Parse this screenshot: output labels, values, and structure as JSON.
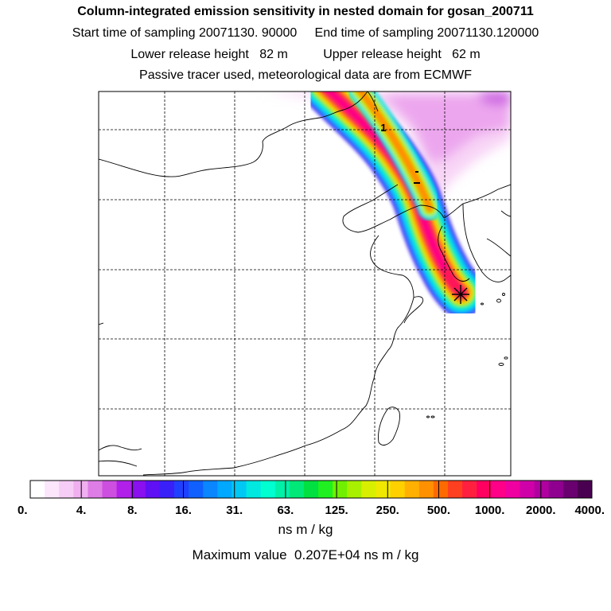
{
  "header": {
    "title": "Column-integrated emission sensitivity in nested domain for gosan_200711",
    "line1": "Start time of sampling 20071130. 90000     End time of sampling 20071130.120000",
    "line2": "Lower release height   82 m          Upper release height   62 m",
    "line3": "Passive tracer used, meteorological data are from ECMWF"
  },
  "chart_data": {
    "type": "heatmap",
    "title": "Column-integrated emission sensitivity in nested domain for gosan_200711",
    "units_label": "ns m / kg",
    "max_value_label": "Maximum value  0.207E+04 ns m / kg",
    "release_site_marker": "*",
    "plume_label": "1",
    "colorbar": {
      "tick_labels": [
        "0.",
        "4.",
        "8.",
        "16.",
        "31.",
        "63.",
        "125.",
        "250.",
        "500.",
        "1000.",
        "2000.",
        "4000."
      ],
      "colors": [
        "#ffffff",
        "#fbe6fb",
        "#f6cdf6",
        "#f0b0f0",
        "#de7de6",
        "#cc4fe0",
        "#b020e8",
        "#8a10f0",
        "#6010f4",
        "#3a20f8",
        "#2040ff",
        "#1060ff",
        "#0a86ff",
        "#00a8ff",
        "#00c8f4",
        "#00e8e0",
        "#00ffd0",
        "#00f0a8",
        "#00e878",
        "#00e040",
        "#20f020",
        "#70f000",
        "#a8f000",
        "#d8f000",
        "#f0e800",
        "#ffd000",
        "#ffb000",
        "#ff9000",
        "#ff6a00",
        "#ff4020",
        "#ff2040",
        "#ff0060",
        "#ff0088",
        "#f000a0",
        "#d000a8",
        "#b000a0",
        "#900090",
        "#6a0070",
        "#4a0050"
      ]
    }
  }
}
